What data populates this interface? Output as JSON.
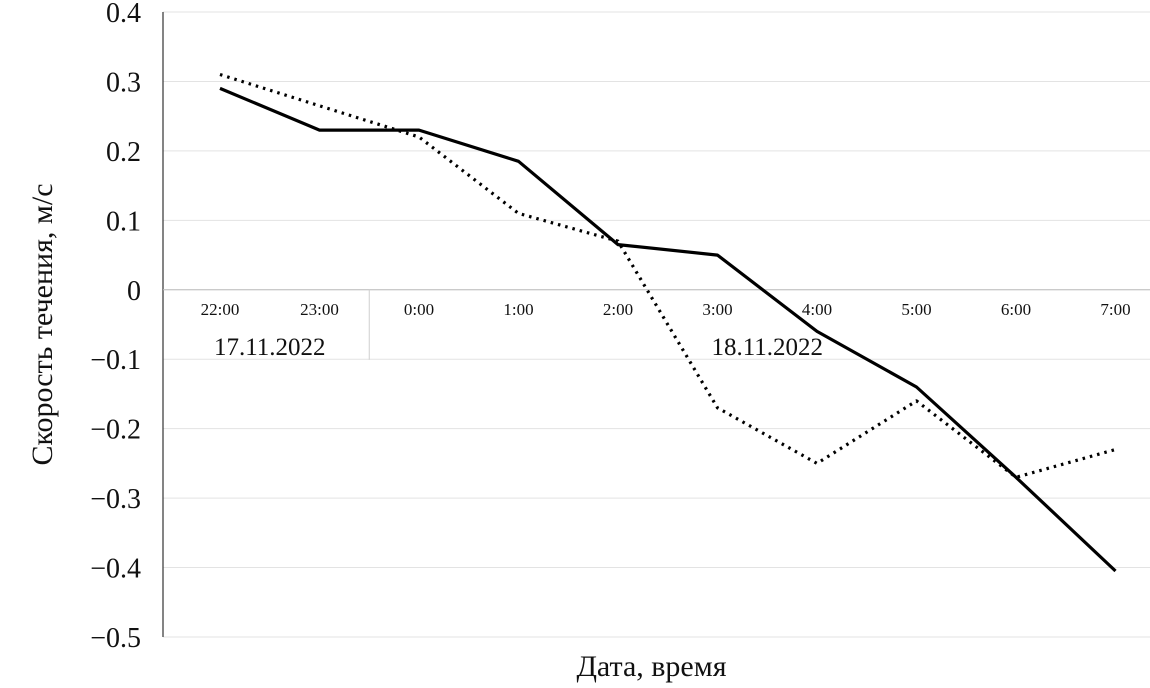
{
  "chart_data": {
    "type": "line",
    "xlabel": "Дата, время",
    "ylabel": "Скорость течения, м/с",
    "ylim": [
      -0.5,
      0.4
    ],
    "yticks": [
      "0.4",
      "0.3",
      "0.2",
      "0.1",
      "0",
      "−0.1",
      "−0.2",
      "−0.3",
      "−0.4",
      "−0.5"
    ],
    "ytick_values": [
      0.4,
      0.3,
      0.2,
      0.1,
      0,
      -0.1,
      -0.2,
      -0.3,
      -0.4,
      -0.5
    ],
    "categories": [
      "22:00",
      "23:00",
      "0:00",
      "1:00",
      "2:00",
      "3:00",
      "4:00",
      "5:00",
      "6:00",
      "7:00"
    ],
    "date_groups": [
      {
        "label": "17.11.2022",
        "from": "22:00",
        "to": "23:00"
      },
      {
        "label": "18.11.2022",
        "from": "0:00",
        "to": "7:00"
      }
    ],
    "grid": true,
    "series": [
      {
        "style": "solid",
        "color": "#000000",
        "values": [
          0.29,
          0.23,
          0.23,
          0.185,
          0.065,
          0.05,
          -0.06,
          -0.14,
          -0.27,
          -0.405
        ]
      },
      {
        "style": "dotted",
        "color": "#000000",
        "values": [
          0.31,
          0.265,
          0.22,
          0.11,
          0.07,
          -0.17,
          -0.25,
          -0.16,
          -0.27,
          -0.23
        ]
      }
    ]
  }
}
